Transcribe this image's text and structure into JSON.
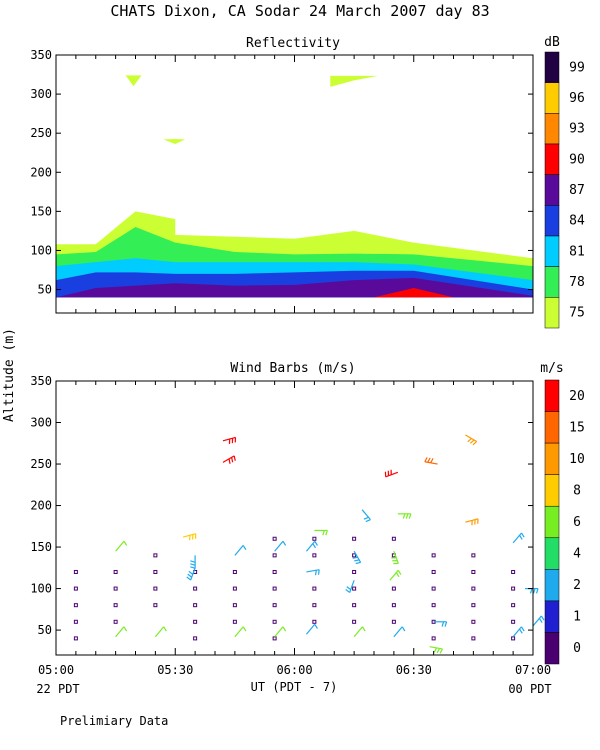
{
  "title": "CHATS Dixon, CA   Sodar  24 March 2007   day  83",
  "footnote": "Prelimiary Data",
  "colors": {
    "reflectivity_bands": [
      "#ccff33",
      "#33ee55",
      "#00ccff",
      "#1a3fe0",
      "#5a0a9a"
    ],
    "reflectivity_peak": "#ff0000",
    "wind_scale": [
      "#4a0070",
      "#2020d0",
      "#20aaee",
      "#22dd66",
      "#77ee22",
      "#ffcc00",
      "#ff9900",
      "#ff6600",
      "#ff0000"
    ]
  },
  "chart_data": [
    {
      "type": "area",
      "title": "Reflectivity",
      "xlabel": "",
      "ylabel": "",
      "ylim": [
        20,
        350
      ],
      "y_ticks": [
        50,
        100,
        150,
        200,
        250,
        300,
        350
      ],
      "xlim": [
        "05:00",
        "07:00"
      ],
      "colorbar": {
        "unit": "dB",
        "labels": [
          "99",
          "96",
          "93",
          "90",
          "87",
          "84",
          "81",
          "78",
          "75"
        ]
      },
      "series": [
        {
          "level": "75",
          "x_minutes": [
            0,
            10,
            20,
            30,
            30,
            60,
            75,
            90,
            120
          ],
          "top": [
            108,
            108,
            150,
            140,
            120,
            115,
            125,
            110,
            90
          ]
        },
        {
          "level": "78",
          "x_minutes": [
            0,
            10,
            20,
            30,
            45,
            60,
            75,
            90,
            120
          ],
          "top": [
            95,
            98,
            130,
            110,
            98,
            95,
            96,
            95,
            80
          ]
        },
        {
          "level": "81",
          "x_minutes": [
            0,
            10,
            20,
            30,
            45,
            60,
            75,
            90,
            120
          ],
          "top": [
            80,
            85,
            90,
            85,
            85,
            85,
            85,
            82,
            62
          ]
        },
        {
          "level": "84",
          "x_minutes": [
            0,
            10,
            20,
            30,
            45,
            60,
            75,
            90,
            120
          ],
          "top": [
            62,
            72,
            72,
            70,
            70,
            72,
            74,
            74,
            50
          ]
        },
        {
          "level": "87",
          "x_minutes": [
            0,
            10,
            20,
            30,
            45,
            60,
            75,
            90,
            120
          ],
          "top": [
            40,
            52,
            55,
            58,
            55,
            56,
            62,
            65,
            42
          ]
        }
      ],
      "peak_region": {
        "level": "90",
        "x_minutes": [
          80,
          90,
          100
        ],
        "top": [
          40,
          52,
          40
        ]
      },
      "floating_patches": [
        {
          "level": "75",
          "x_minutes": [
            17.5,
            19.5,
            21.5
          ],
          "top": [
            322,
            310,
            324
          ]
        },
        {
          "level": "75",
          "x_minutes": [
            27,
            30,
            32.5
          ],
          "top": [
            242,
            240,
            242
          ]
        },
        {
          "level": "75",
          "x_minutes": [
            69,
            75,
            81
          ],
          "top": [
            322,
            324,
            322
          ]
        }
      ]
    },
    {
      "type": "scatter",
      "title": "Wind Barbs (m/s)",
      "ylabel": "Altitude  (m)",
      "ylim": [
        20,
        350
      ],
      "y_ticks": [
        50,
        100,
        150,
        200,
        250,
        300,
        350
      ],
      "xlabel": "UT  (PDT - 7)",
      "x_ticks": [
        "05:00",
        "05:30",
        "06:00",
        "06:30",
        "07:00"
      ],
      "x_tick_minutes": [
        0,
        30,
        60,
        90,
        120
      ],
      "x_sublabels": {
        "left": "22 PDT",
        "right": "00 PDT"
      },
      "colorbar": {
        "unit": "m/s",
        "labels": [
          "20",
          "15",
          "10",
          "8",
          "6",
          "4",
          "2",
          "1",
          "0"
        ]
      },
      "calm_points": {
        "columns_minutes": [
          5,
          15,
          25,
          35,
          45,
          55,
          65,
          75,
          85,
          95,
          105,
          115
        ],
        "points": [
          [
            5,
            40
          ],
          [
            5,
            60
          ],
          [
            5,
            80
          ],
          [
            5,
            100
          ],
          [
            5,
            120
          ],
          [
            15,
            60
          ],
          [
            15,
            80
          ],
          [
            15,
            100
          ],
          [
            15,
            120
          ],
          [
            25,
            80
          ],
          [
            25,
            100
          ],
          [
            25,
            120
          ],
          [
            25,
            140
          ],
          [
            35,
            40
          ],
          [
            35,
            60
          ],
          [
            35,
            80
          ],
          [
            35,
            100
          ],
          [
            35,
            120
          ],
          [
            45,
            60
          ],
          [
            45,
            80
          ],
          [
            45,
            100
          ],
          [
            45,
            120
          ],
          [
            55,
            40
          ],
          [
            55,
            60
          ],
          [
            55,
            80
          ],
          [
            55,
            100
          ],
          [
            55,
            120
          ],
          [
            55,
            140
          ],
          [
            55,
            160
          ],
          [
            65,
            60
          ],
          [
            65,
            80
          ],
          [
            65,
            100
          ],
          [
            65,
            140
          ],
          [
            65,
            160
          ],
          [
            75,
            60
          ],
          [
            75,
            80
          ],
          [
            75,
            100
          ],
          [
            75,
            120
          ],
          [
            75,
            140
          ],
          [
            75,
            160
          ],
          [
            85,
            60
          ],
          [
            85,
            80
          ],
          [
            85,
            100
          ],
          [
            85,
            140
          ],
          [
            85,
            160
          ],
          [
            95,
            40
          ],
          [
            95,
            60
          ],
          [
            95,
            80
          ],
          [
            95,
            100
          ],
          [
            95,
            120
          ],
          [
            95,
            140
          ],
          [
            105,
            40
          ],
          [
            105,
            60
          ],
          [
            105,
            80
          ],
          [
            105,
            100
          ],
          [
            105,
            120
          ],
          [
            105,
            140
          ],
          [
            115,
            40
          ],
          [
            115,
            60
          ],
          [
            115,
            80
          ],
          [
            115,
            100
          ],
          [
            115,
            120
          ]
        ]
      },
      "barbs": [
        [
          15,
          42,
          40,
          1,
          4
        ],
        [
          15,
          145,
          40,
          1,
          4
        ],
        [
          25,
          42,
          40,
          1,
          4
        ],
        [
          32,
          162,
          75,
          3,
          5
        ],
        [
          35,
          125,
          200,
          4,
          2
        ],
        [
          35,
          140,
          180,
          6,
          2
        ],
        [
          45,
          42,
          40,
          1,
          4
        ],
        [
          45,
          140,
          40,
          1,
          2
        ],
        [
          42,
          252,
          60,
          5,
          8
        ],
        [
          42,
          278,
          75,
          5,
          8
        ],
        [
          55,
          42,
          40,
          1,
          4
        ],
        [
          55,
          145,
          40,
          1,
          2
        ],
        [
          63,
          45,
          40,
          1,
          2
        ],
        [
          63,
          120,
          80,
          2,
          2
        ],
        [
          63,
          145,
          40,
          2,
          2
        ],
        [
          65,
          170,
          90,
          2,
          4
        ],
        [
          75,
          42,
          40,
          1,
          4
        ],
        [
          75,
          110,
          200,
          2,
          2
        ],
        [
          75,
          145,
          150,
          4,
          2
        ],
        [
          77,
          195,
          140,
          2,
          2
        ],
        [
          85,
          42,
          40,
          1,
          2
        ],
        [
          84,
          110,
          40,
          2,
          4
        ],
        [
          85,
          145,
          160,
          3,
          4
        ],
        [
          86,
          190,
          90,
          4,
          4
        ],
        [
          86,
          240,
          250,
          6,
          8
        ],
        [
          94,
          30,
          100,
          3,
          4
        ],
        [
          95,
          60,
          90,
          2,
          2
        ],
        [
          96,
          250,
          280,
          5,
          7
        ],
        [
          103,
          180,
          75,
          4,
          6
        ],
        [
          103,
          285,
          120,
          4,
          6
        ],
        [
          115,
          42,
          40,
          2,
          2
        ],
        [
          115,
          155,
          40,
          2,
          2
        ],
        [
          118,
          100,
          90,
          3,
          2
        ],
        [
          120,
          55,
          40,
          2,
          2
        ]
      ]
    }
  ]
}
